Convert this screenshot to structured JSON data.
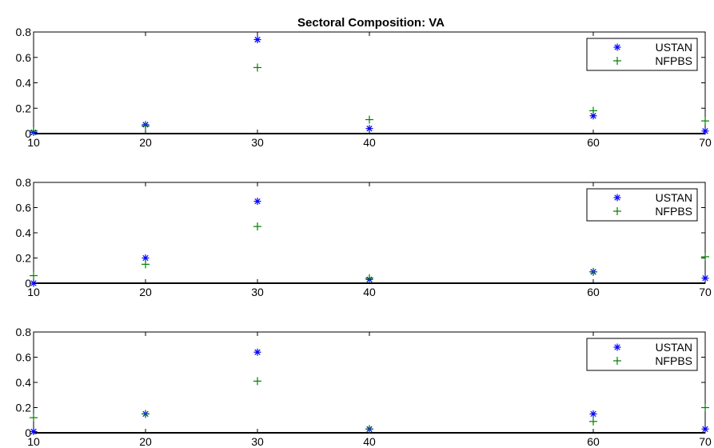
{
  "figure": {
    "title": "Sectoral Composition: VA"
  },
  "chart_data": [
    {
      "type": "scatter",
      "title": "Sectoral Composition: VA",
      "xlabel": "",
      "ylabel": "",
      "xlim": [
        10,
        70
      ],
      "ylim": [
        0,
        0.8
      ],
      "x_ticks": [
        "10",
        "20",
        "30",
        "40",
        "60",
        "70"
      ],
      "y_ticks": [
        "0",
        "0.2",
        "0.4",
        "0.6",
        "0.8"
      ],
      "legend_position": "top-right",
      "series": [
        {
          "name": "USTAN",
          "marker": "asterisk",
          "color": "#0000ff",
          "points": [
            {
              "x": 10,
              "y": 0.01
            },
            {
              "x": 20,
              "y": 0.07
            },
            {
              "x": 30,
              "y": 0.74
            },
            {
              "x": 40,
              "y": 0.04
            },
            {
              "x": 60,
              "y": 0.14
            },
            {
              "x": 70,
              "y": 0.02
            }
          ]
        },
        {
          "name": "NFPBS",
          "marker": "plus",
          "color": "#008000",
          "points": [
            {
              "x": 10,
              "y": 0.02
            },
            {
              "x": 20,
              "y": 0.06
            },
            {
              "x": 30,
              "y": 0.52
            },
            {
              "x": 40,
              "y": 0.11
            },
            {
              "x": 60,
              "y": 0.18
            },
            {
              "x": 70,
              "y": 0.1
            }
          ]
        }
      ]
    },
    {
      "type": "scatter",
      "title": "",
      "xlabel": "",
      "ylabel": "",
      "xlim": [
        10,
        70
      ],
      "ylim": [
        0,
        0.8
      ],
      "x_ticks": [
        "10",
        "20",
        "30",
        "40",
        "60",
        "70"
      ],
      "y_ticks": [
        "0",
        "0.2",
        "0.4",
        "0.6",
        "0.8"
      ],
      "legend_position": "top-right",
      "series": [
        {
          "name": "USTAN",
          "marker": "asterisk",
          "color": "#0000ff",
          "points": [
            {
              "x": 10,
              "y": 0.0
            },
            {
              "x": 20,
              "y": 0.2
            },
            {
              "x": 30,
              "y": 0.65
            },
            {
              "x": 40,
              "y": 0.03
            },
            {
              "x": 60,
              "y": 0.09
            },
            {
              "x": 70,
              "y": 0.04
            }
          ]
        },
        {
          "name": "NFPBS",
          "marker": "plus",
          "color": "#008000",
          "points": [
            {
              "x": 10,
              "y": 0.06
            },
            {
              "x": 20,
              "y": 0.15
            },
            {
              "x": 30,
              "y": 0.45
            },
            {
              "x": 40,
              "y": 0.04
            },
            {
              "x": 60,
              "y": 0.09
            },
            {
              "x": 70,
              "y": 0.21
            }
          ]
        }
      ]
    },
    {
      "type": "scatter",
      "title": "",
      "xlabel": "",
      "ylabel": "",
      "xlim": [
        10,
        70
      ],
      "ylim": [
        0,
        0.8
      ],
      "x_ticks": [
        "10",
        "20",
        "30",
        "40",
        "60",
        "70"
      ],
      "y_ticks": [
        "0",
        "0.2",
        "0.4",
        "0.6",
        "0.8"
      ],
      "legend_position": "top-right",
      "series": [
        {
          "name": "USTAN",
          "marker": "asterisk",
          "color": "#0000ff",
          "points": [
            {
              "x": 10,
              "y": 0.01
            },
            {
              "x": 20,
              "y": 0.15
            },
            {
              "x": 30,
              "y": 0.64
            },
            {
              "x": 40,
              "y": 0.03
            },
            {
              "x": 60,
              "y": 0.15
            },
            {
              "x": 70,
              "y": 0.03
            }
          ]
        },
        {
          "name": "NFPBS",
          "marker": "plus",
          "color": "#008000",
          "points": [
            {
              "x": 10,
              "y": 0.12
            },
            {
              "x": 20,
              "y": 0.15
            },
            {
              "x": 30,
              "y": 0.41
            },
            {
              "x": 40,
              "y": 0.03
            },
            {
              "x": 60,
              "y": 0.09
            },
            {
              "x": 70,
              "y": 0.2
            }
          ]
        }
      ]
    }
  ]
}
